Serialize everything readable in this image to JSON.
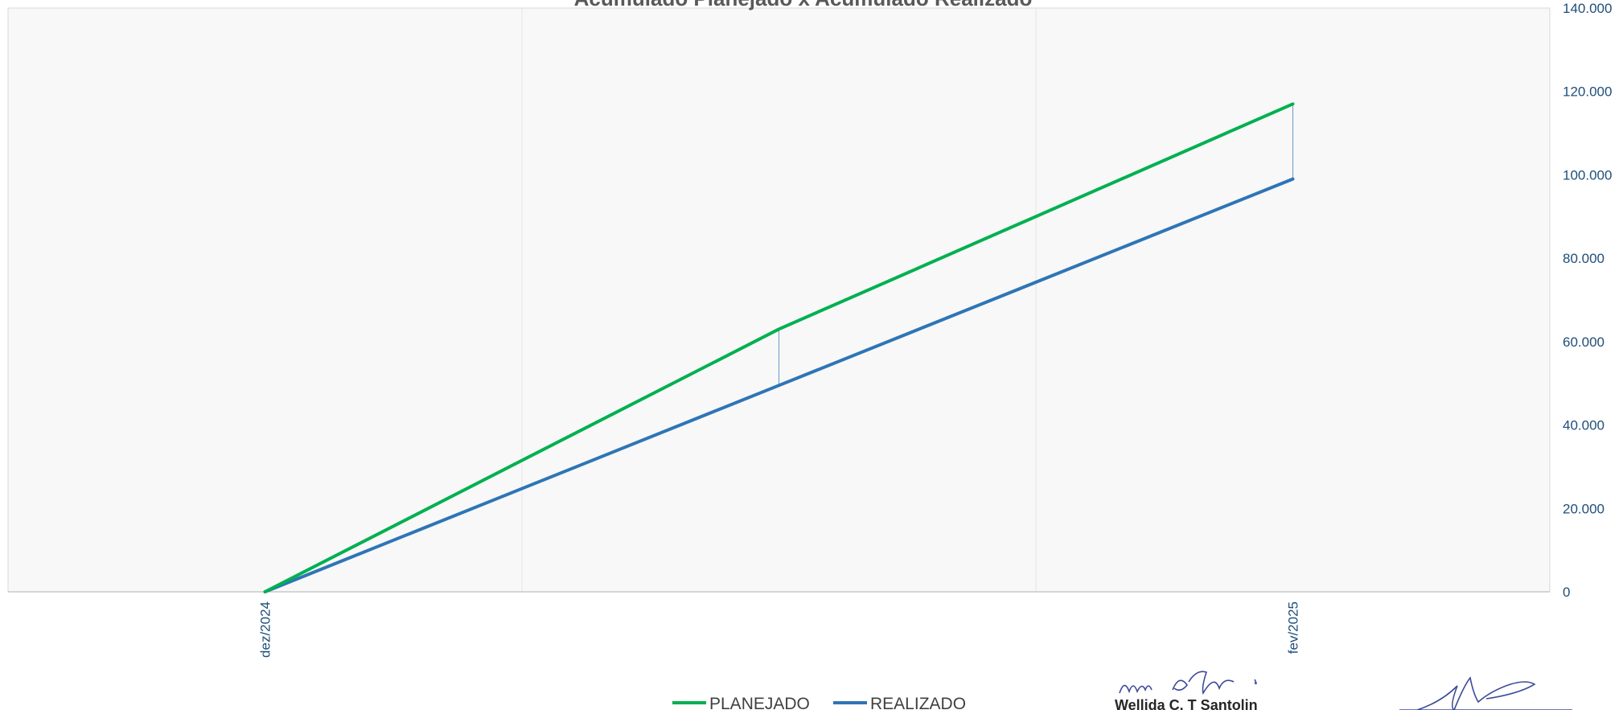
{
  "chart_data": {
    "type": "line",
    "title": "Acumulado Planejado x Acumulado Realizado",
    "x": [
      "dez/2024",
      "",
      "fev/2025"
    ],
    "x_tick_labels": [
      "dez/2024",
      "fev/2025"
    ],
    "series": [
      {
        "name": "PLANEJADO",
        "color": "#00b050",
        "values": [
          0,
          63000,
          117000
        ]
      },
      {
        "name": "REALIZADO",
        "color": "#2e75b6",
        "values": [
          0,
          49500,
          99000
        ]
      }
    ],
    "ylim": [
      0,
      140000
    ],
    "y_ticks": [
      "0",
      "20.000",
      "40.000",
      "60.000",
      "80.000",
      "100.000",
      "120.000",
      "140.000"
    ],
    "y_axis_side": "right",
    "grid": "vertical",
    "legend_placement": "bottom",
    "plot_background": "#f8f8f8",
    "axis_text_color": "#1f4e79"
  },
  "signature": {
    "name": "Wellida C. T Santolin"
  }
}
